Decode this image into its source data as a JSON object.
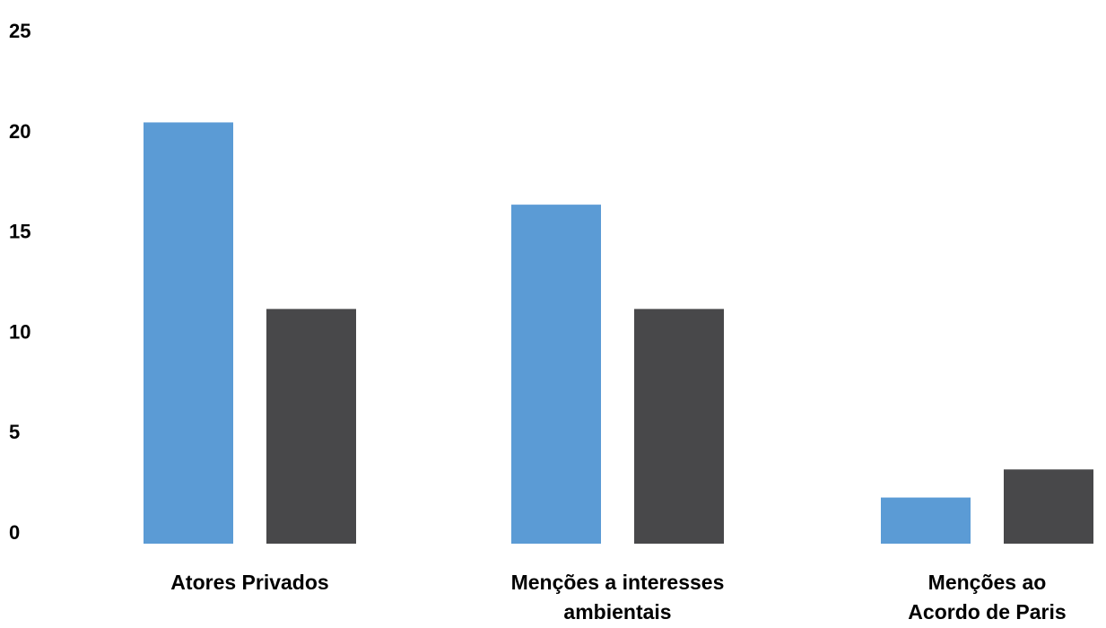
{
  "chart_data": {
    "type": "bar",
    "title": "",
    "xlabel": "",
    "ylabel": "",
    "ylim": [
      0,
      25
    ],
    "yticks": [
      0,
      5,
      10,
      15,
      20,
      25
    ],
    "grid": false,
    "legend": "none",
    "categories": [
      [
        "Atores Privados"
      ],
      [
        "Menções a interesses",
        "ambientais"
      ],
      [
        "Menções ao",
        "Acordo de Paris"
      ]
    ],
    "series": [
      {
        "values": [
          21,
          16.9,
          2.3
        ],
        "color": "#5b9bd5"
      },
      {
        "values": [
          11.7,
          11.7,
          3.7
        ],
        "color": "#48484a"
      }
    ]
  }
}
